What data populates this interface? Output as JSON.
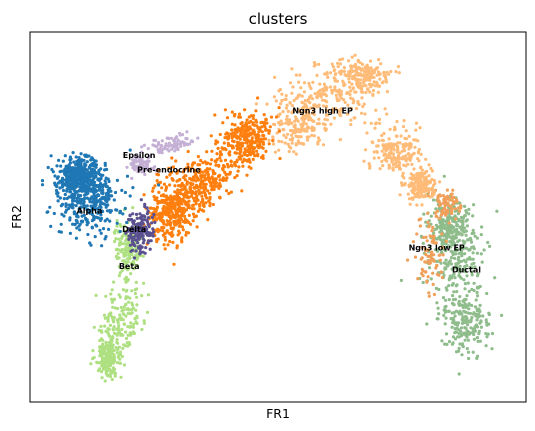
{
  "chart_data": {
    "type": "scatter",
    "title": "clusters",
    "xlabel": "FR1",
    "ylabel": "FR2",
    "xlim": [
      0,
      100
    ],
    "ylim": [
      0,
      100
    ],
    "grid": false,
    "legend": "on data",
    "ticks": "none",
    "clusters": [
      {
        "name": "Ductal",
        "color": "#8fbc8b",
        "label_at": [
          88,
          35
        ]
      },
      {
        "name": "Ngn3 low EP",
        "color": "#f0a05a",
        "label_at": [
          82,
          41
        ]
      },
      {
        "name": "Ngn3 high EP",
        "color": "#ffbb78",
        "label_at": [
          59,
          78
        ]
      },
      {
        "name": "Pre-endocrine",
        "color": "#ff7f0e",
        "label_at": [
          28,
          62
        ]
      },
      {
        "name": "Beta",
        "color": "#aee082",
        "label_at": [
          20,
          36
        ]
      },
      {
        "name": "Alpha",
        "color": "#1f77b4",
        "label_at": [
          12,
          51
        ]
      },
      {
        "name": "Delta",
        "color": "#5a5090",
        "label_at": [
          21,
          46
        ]
      },
      {
        "name": "Epsilon",
        "color": "#c5b0d5",
        "label_at": [
          22,
          66
        ]
      }
    ]
  }
}
